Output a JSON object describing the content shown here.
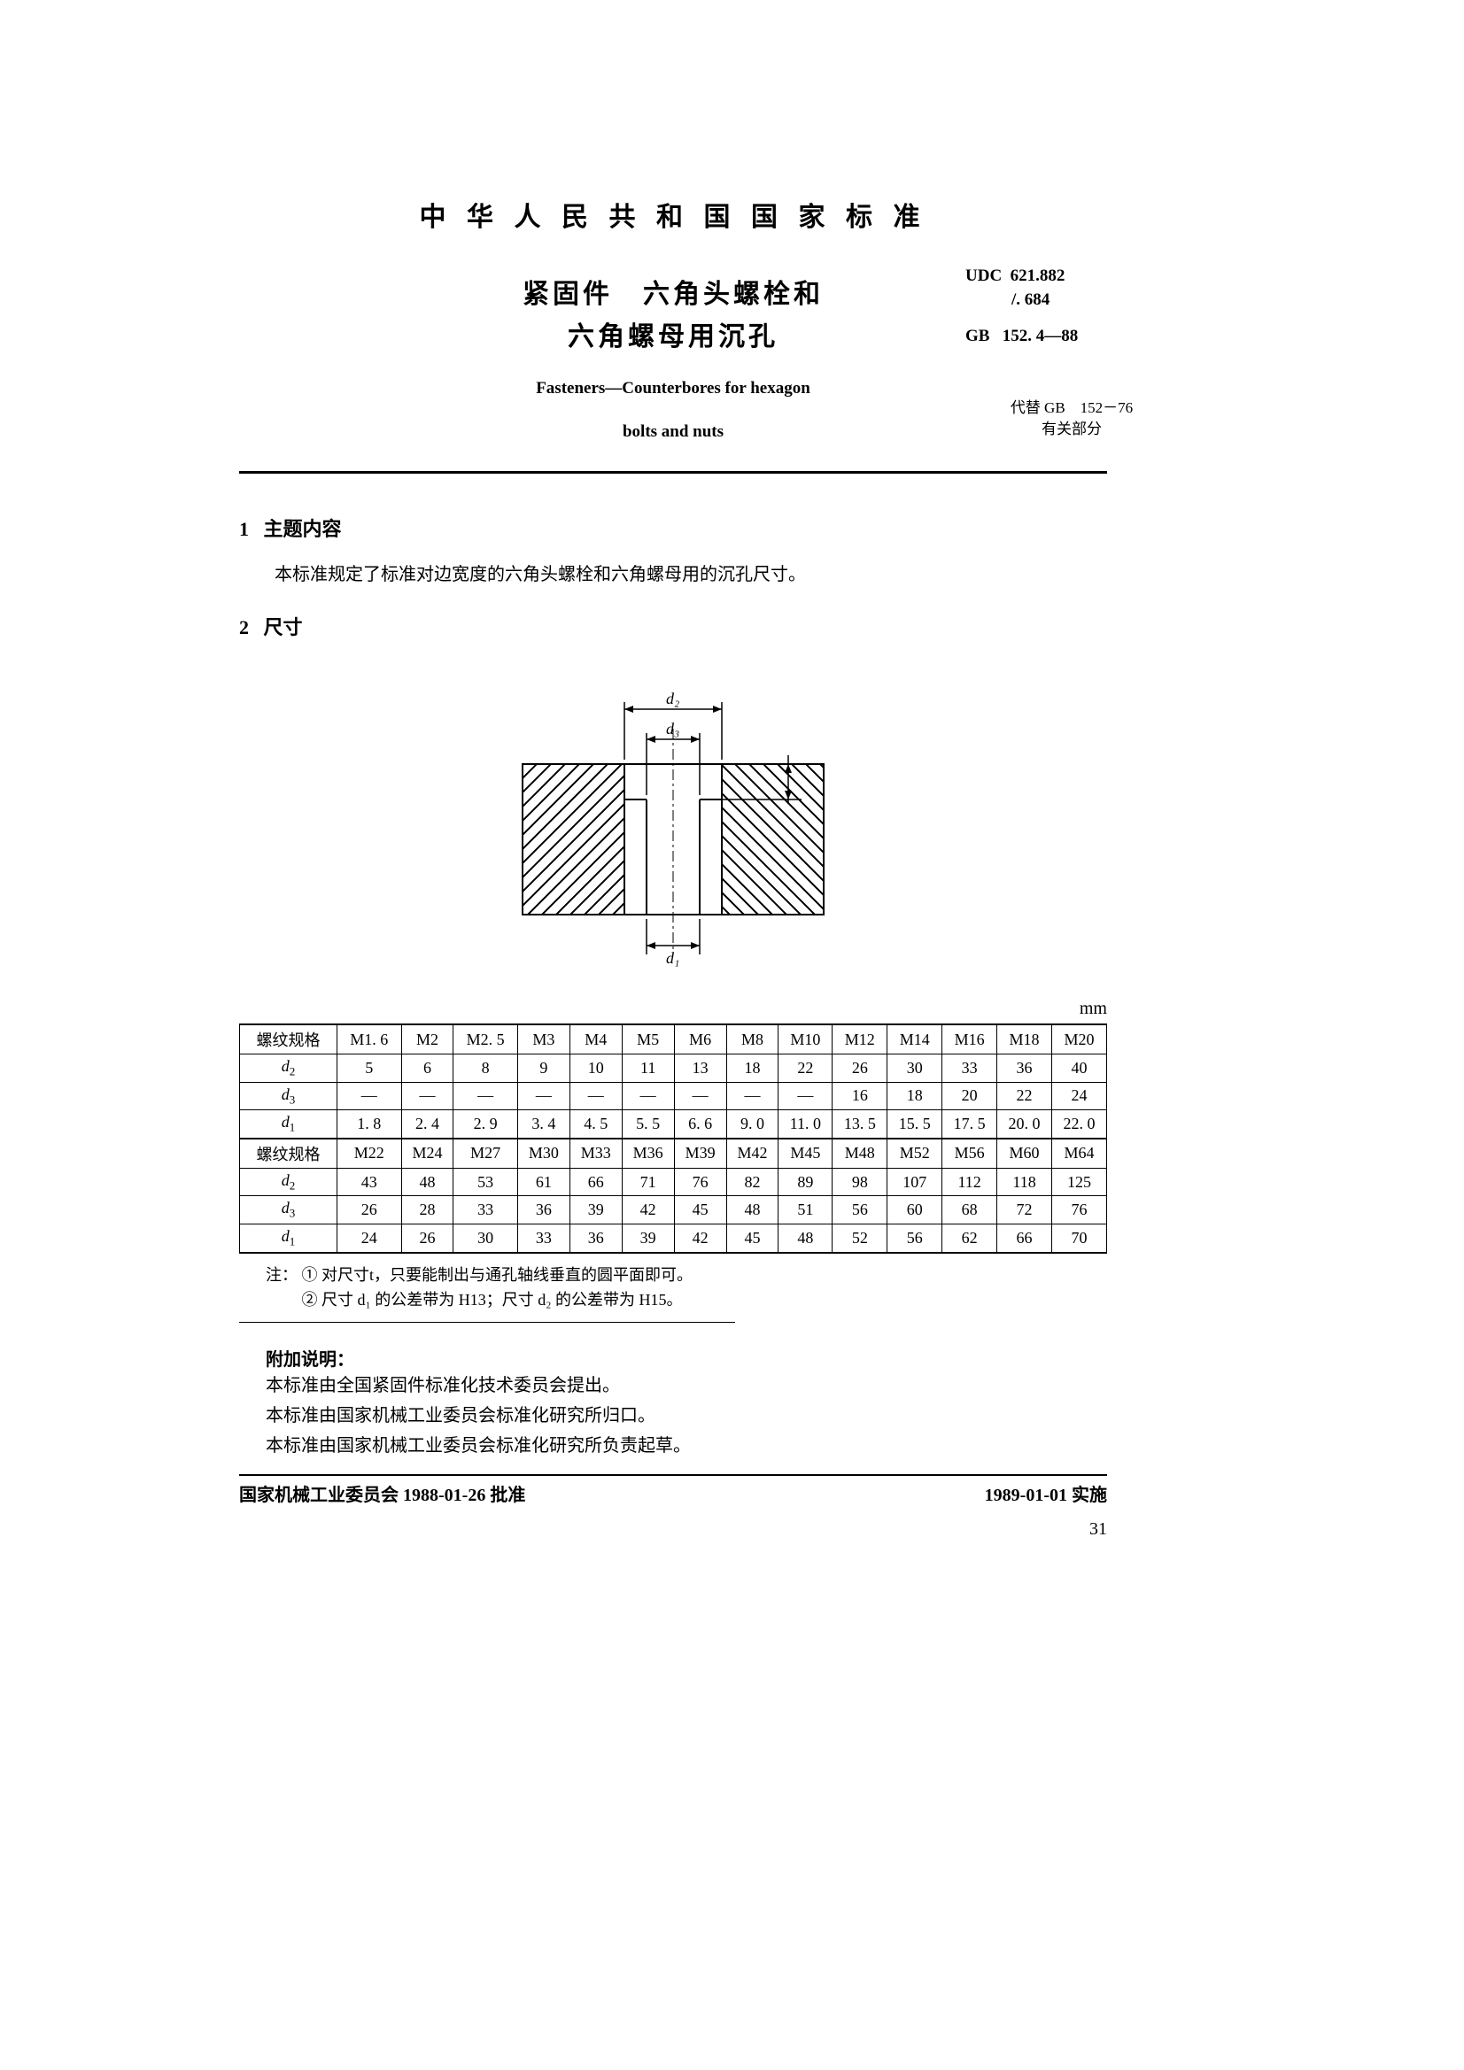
{
  "header": {
    "country_title": "中 华 人 民 共 和 国 国 家 标 准",
    "main_title_1": "紧固件　六角头螺栓和",
    "main_title_2": "六角螺母用沉孔",
    "en_title_1": "Fasteners—Counterbores for hexagon",
    "en_title_2": "bolts and nuts",
    "udc_label": "UDC",
    "udc_value": "621.882",
    "udc_value2": "/. 684",
    "gb_label": "GB",
    "gb_value": "152. 4—88",
    "replace_1": "代替 GB　152－76",
    "replace_2": "有关部分"
  },
  "sections": {
    "s1_num": "1",
    "s1_title": "主题内容",
    "s1_body": "本标准规定了标准对边宽度的六角头螺栓和六角螺母用的沉孔尺寸。",
    "s2_num": "2",
    "s2_title": "尺寸"
  },
  "diagram": {
    "d2_label": "d₂",
    "d3_label": "d₃",
    "d1_label": "d₁",
    "stroke": "#000000",
    "stroke_width": 2,
    "hatch_spacing": 16
  },
  "unit_label": "mm",
  "table": {
    "row_labels": [
      "螺纹规格",
      "d₂",
      "d₃",
      "d₁"
    ],
    "block1": {
      "sizes": [
        "M1. 6",
        "M2",
        "M2. 5",
        "M3",
        "M4",
        "M5",
        "M6",
        "M8",
        "M10",
        "M12",
        "M14",
        "M16",
        "M18",
        "M20"
      ],
      "d2": [
        "5",
        "6",
        "8",
        "9",
        "10",
        "11",
        "13",
        "18",
        "22",
        "26",
        "30",
        "33",
        "36",
        "40"
      ],
      "d3": [
        "—",
        "—",
        "—",
        "—",
        "—",
        "—",
        "—",
        "—",
        "—",
        "16",
        "18",
        "20",
        "22",
        "24"
      ],
      "d1": [
        "1. 8",
        "2. 4",
        "2. 9",
        "3. 4",
        "4. 5",
        "5. 5",
        "6. 6",
        "9. 0",
        "11. 0",
        "13. 5",
        "15. 5",
        "17. 5",
        "20. 0",
        "22. 0"
      ]
    },
    "block2": {
      "sizes": [
        "M22",
        "M24",
        "M27",
        "M30",
        "M33",
        "M36",
        "M39",
        "M42",
        "M45",
        "M48",
        "M52",
        "M56",
        "M60",
        "M64"
      ],
      "d2": [
        "43",
        "48",
        "53",
        "61",
        "66",
        "71",
        "76",
        "82",
        "89",
        "98",
        "107",
        "112",
        "118",
        "125"
      ],
      "d3": [
        "26",
        "28",
        "33",
        "36",
        "39",
        "42",
        "45",
        "48",
        "51",
        "56",
        "60",
        "68",
        "72",
        "76"
      ],
      "d1": [
        "24",
        "26",
        "30",
        "33",
        "36",
        "39",
        "42",
        "45",
        "48",
        "52",
        "56",
        "62",
        "66",
        "70"
      ]
    }
  },
  "notes": {
    "prefix": "注：",
    "n1": "① 对尺寸t，只要能制出与通孔轴线垂直的圆平面即可。",
    "n2": "② 尺寸 d₁ 的公差带为 H13；尺寸 d₂ 的公差带为 H15。"
  },
  "appendix": {
    "title": "附加说明：",
    "l1": "本标准由全国紧固件标准化技术委员会提出。",
    "l2": "本标准由国家机械工业委员会标准化研究所归口。",
    "l3": "本标准由国家机械工业委员会标准化研究所负责起草。"
  },
  "footer": {
    "approve": "国家机械工业委员会 1988-01-26 批准",
    "effect": "1989-01-01 实施",
    "page": "31"
  }
}
